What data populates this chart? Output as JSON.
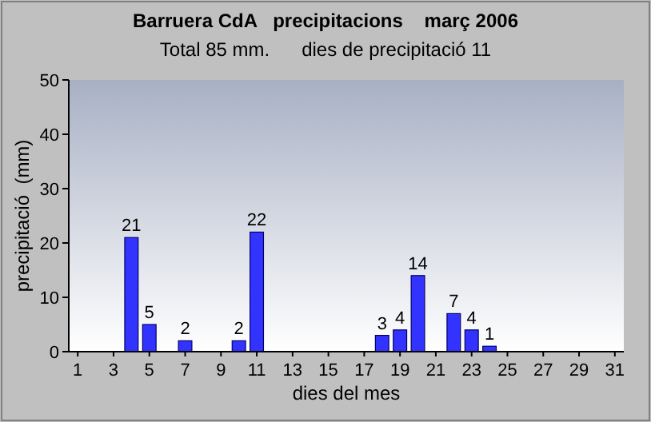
{
  "chart_data": {
    "type": "bar",
    "title": "Barruera CdA   precipitacions    març 2006",
    "subtitle": "Total 85 mm.      dies de precipitació 11",
    "xlabel": "dies del mes",
    "ylabel": "precipitació  (mm)",
    "x": [
      1,
      2,
      3,
      4,
      5,
      6,
      7,
      8,
      9,
      10,
      11,
      12,
      13,
      14,
      15,
      16,
      17,
      18,
      19,
      20,
      21,
      22,
      23,
      24,
      25,
      26,
      27,
      28,
      29,
      30,
      31
    ],
    "xlim": [
      0.5,
      31.5
    ],
    "xticks": [
      1,
      3,
      5,
      7,
      9,
      11,
      13,
      15,
      17,
      19,
      21,
      23,
      25,
      27,
      29,
      31
    ],
    "values": [
      0,
      0,
      0,
      21,
      5,
      0,
      2,
      0,
      0,
      2,
      22,
      0,
      0,
      0,
      0,
      0,
      0,
      3,
      4,
      14,
      0,
      7,
      4,
      1,
      0,
      0,
      0,
      0,
      0,
      0,
      0
    ],
    "value_labels": [
      null,
      null,
      null,
      "21",
      "5",
      null,
      "2",
      null,
      null,
      "2",
      "22",
      null,
      null,
      null,
      null,
      null,
      null,
      "3",
      "4",
      "14",
      null,
      "7",
      "4",
      "1",
      null,
      null,
      null,
      null,
      null,
      null,
      null
    ],
    "color": "#3333ff",
    "ylim": [
      0,
      50
    ],
    "yticks": [
      0,
      10,
      20,
      30,
      40,
      50
    ],
    "grid": false
  }
}
